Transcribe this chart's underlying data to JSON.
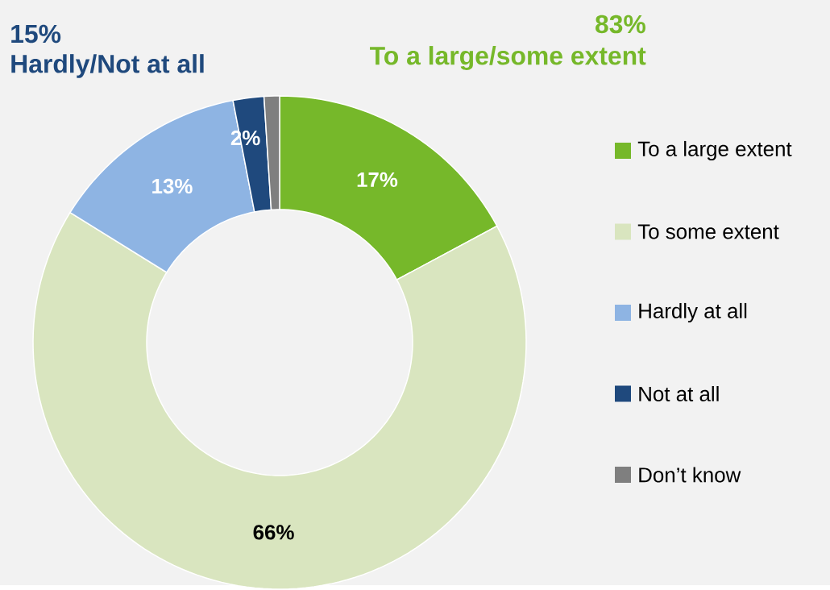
{
  "chart_data": {
    "type": "donut",
    "categories": [
      "To a large extent",
      "To some extent",
      "Hardly at all",
      "Not at all",
      "Don’t know"
    ],
    "values": [
      17,
      66,
      13,
      2,
      1
    ],
    "colors": [
      "#76b82a",
      "#d9e5bf",
      "#8eb4e3",
      "#1f497d",
      "#7f7f7f"
    ],
    "value_labels": [
      "17%",
      "66%",
      "13%",
      "2%",
      null
    ],
    "annotations": [
      "15%",
      "Hardly/Not at all",
      "83%",
      "To a large/some extent"
    ],
    "legend": "right"
  }
}
